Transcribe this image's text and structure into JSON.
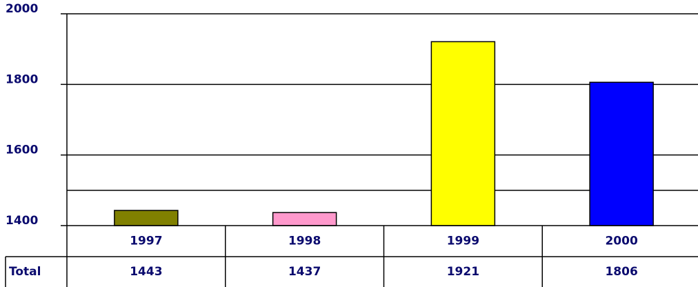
{
  "chart_data": {
    "type": "bar",
    "categories": [
      "1997",
      "1998",
      "1999",
      "2000"
    ],
    "values": [
      1443,
      1437,
      1921,
      1806
    ],
    "colors": [
      "#808000",
      "#ff99cc",
      "#ffff00",
      "#0000ff"
    ],
    "ylim": [
      1400,
      2000
    ],
    "yticks": [
      1400,
      1600,
      1800,
      2000
    ],
    "grid": true,
    "reference_line": 1500,
    "table_row_label": "Total"
  }
}
